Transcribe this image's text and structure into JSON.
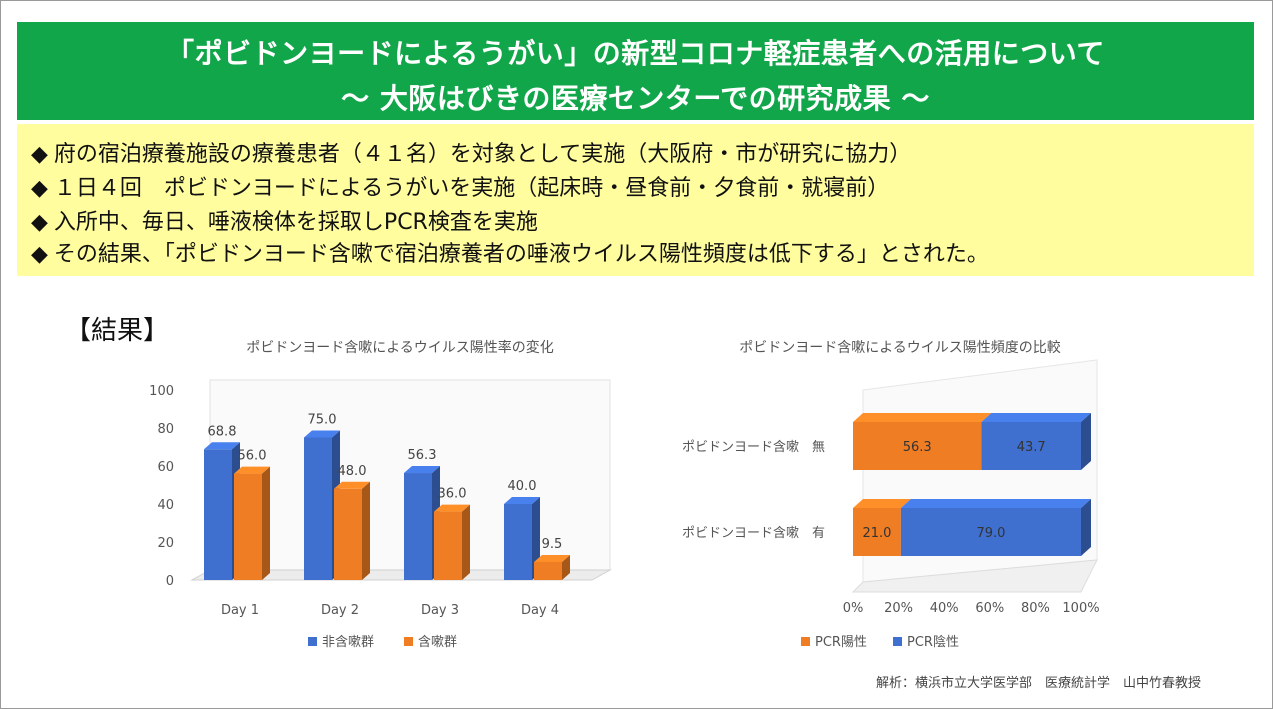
{
  "header": {
    "title_line1": "「ポビドンヨードによるうがい」の新型コロナ軽症患者への活用について",
    "title_line2": "〜 大阪はびきの医療センターでの研究成果 〜"
  },
  "bullets": [
    "府の宿泊療養施設の療養患者（４１名）を対象として実施（大阪府・市が研究に協力）",
    "１日４回　ポビドンヨードによるうがいを実施（起床時・昼食前・夕食前・就寝前）",
    "入所中、毎日、唾液検体を採取しPCR検査を実施",
    "その結果、「ポビドンヨード含嗽で宿泊療養者の唾液ウイルス陽性頻度は低下する」とされた。"
  ],
  "bullet_marker": "◆",
  "result_label": "【結果】",
  "credit": "解析：横浜市立大学医学部　医療統計学　山中竹春教授",
  "colors": {
    "header_bg": "#12a64a",
    "bullet_bg": "#fffd9e",
    "blue": "#3f6fcf",
    "orange": "#ef7d24"
  },
  "chart_data": [
    {
      "type": "bar",
      "title": "ポビドンヨード含嗽によるウイルス陽性率の変化",
      "categories": [
        "Day 1",
        "Day 2",
        "Day 3",
        "Day 4"
      ],
      "series": [
        {
          "name": "非含嗽群",
          "values": [
            68.8,
            75.0,
            56.3,
            40.0
          ],
          "labels": [
            "68.8",
            "75.0",
            "56.3",
            "40.0"
          ]
        },
        {
          "name": "含嗽群",
          "values": [
            56.0,
            48.0,
            36.0,
            9.5
          ],
          "labels": [
            "56.0",
            "48.0",
            "36.0",
            "9.5"
          ]
        }
      ],
      "ylim": [
        0,
        100
      ],
      "yticks": [
        "0",
        "20",
        "40",
        "60",
        "80",
        "100"
      ],
      "legend": "bottom",
      "grid": false
    },
    {
      "type": "bar",
      "orientation": "horizontal-stacked-100",
      "title": "ポビドンヨード含嗽によるウイルス陽性頻度の比較",
      "categories": [
        "ポビドンヨード含嗽　無",
        "ポビドンヨード含嗽　有"
      ],
      "series": [
        {
          "name": "PCR陽性",
          "values": [
            56.3,
            21.0
          ],
          "labels": [
            "56.3",
            "21.0"
          ]
        },
        {
          "name": "PCR陰性",
          "values": [
            43.7,
            79.0
          ],
          "labels": [
            "43.7",
            "79.0"
          ]
        }
      ],
      "xlim": [
        0,
        100
      ],
      "xticks": [
        "0%",
        "20%",
        "40%",
        "60%",
        "80%",
        "100%"
      ],
      "legend": "bottom",
      "grid": false
    }
  ]
}
